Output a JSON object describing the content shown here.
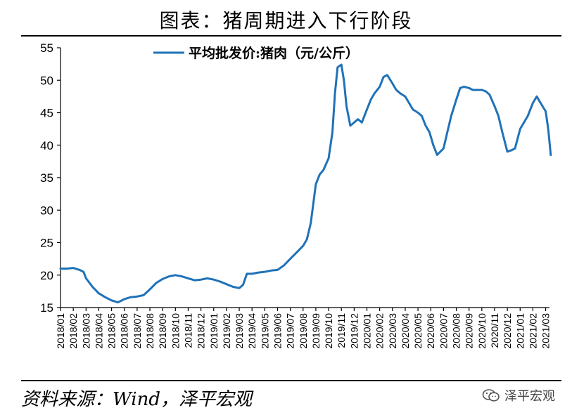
{
  "title": "图表：猪周期进入下行阶段",
  "source": "资料来源：Wind，泽平宏观",
  "logo_text": "泽平宏观",
  "logo_icon": "wechat-icon",
  "colors": {
    "line": "#1f72b8",
    "axis": "#000000"
  },
  "chart_data": {
    "type": "line",
    "title": "图表：猪周期进入下行阶段",
    "xlabel": "",
    "ylabel": "",
    "ylim": [
      15,
      55
    ],
    "yticks": [
      15,
      20,
      25,
      30,
      35,
      40,
      45,
      50,
      55
    ],
    "grid": false,
    "legend_position": "top-center",
    "categories": [
      "2018/01",
      "2018/02",
      "2018/03",
      "2018/04",
      "2018/05",
      "2018/06",
      "2018/07",
      "2018/08",
      "2018/09",
      "2018/10",
      "2018/11",
      "2018/12",
      "2019/01",
      "2019/02",
      "2019/03",
      "2019/04",
      "2019/05",
      "2019/06",
      "2019/07",
      "2019/08",
      "2019/09",
      "2019/10",
      "2019/11",
      "2019/12",
      "2020/01",
      "2020/02",
      "2020/03",
      "2020/04",
      "2020/05",
      "2020/06",
      "2020/07",
      "2020/08",
      "2020/09",
      "2020/10",
      "2020/11",
      "2020/12",
      "2021/01",
      "2021/02",
      "2021/03"
    ],
    "series": [
      {
        "name": "平均批发价:猪肉（元/公斤）",
        "x": [
          0,
          0.5,
          1,
          1.5,
          1.8,
          2,
          2.5,
          3,
          3.5,
          4,
          4.5,
          5,
          5.5,
          6,
          6.5,
          7,
          7.5,
          8,
          8.5,
          9,
          9.5,
          10,
          10.5,
          11,
          11.5,
          12,
          12.5,
          13,
          13.5,
          14,
          14.3,
          14.6,
          15,
          15.5,
          16,
          16.5,
          17,
          17.5,
          18,
          18.5,
          19,
          19.3,
          19.6,
          20,
          20.3,
          20.6,
          21,
          21.3,
          21.5,
          21.7,
          22,
          22.2,
          22.4,
          22.7,
          23,
          23.3,
          23.6,
          24,
          24.3,
          24.6,
          25,
          25.3,
          25.6,
          26,
          26.3,
          26.6,
          27,
          27.3,
          27.6,
          28,
          28.3,
          28.6,
          28.9,
          29.2,
          29.5,
          30,
          30.3,
          30.6,
          31,
          31.3,
          31.6,
          32,
          32.3,
          32.6,
          33,
          33.3,
          33.6,
          34,
          34.3,
          34.6,
          35,
          35.3,
          35.6,
          36,
          36.3,
          36.6,
          37,
          37.3,
          37.6,
          38,
          38.2,
          38.4
        ],
        "values": [
          21.0,
          21.0,
          21.1,
          20.8,
          20.5,
          19.5,
          18.2,
          17.2,
          16.6,
          16.1,
          15.8,
          16.3,
          16.6,
          16.7,
          16.9,
          17.8,
          18.8,
          19.4,
          19.8,
          20.0,
          19.8,
          19.5,
          19.2,
          19.3,
          19.5,
          19.3,
          19.0,
          18.6,
          18.2,
          18.0,
          18.5,
          20.2,
          20.2,
          20.4,
          20.5,
          20.7,
          20.8,
          21.5,
          22.5,
          23.5,
          24.5,
          25.5,
          28.0,
          34.0,
          35.5,
          36.2,
          38.0,
          42.0,
          48.0,
          52.0,
          52.4,
          50.0,
          46.0,
          43.0,
          43.5,
          44.0,
          43.5,
          45.5,
          47.0,
          48.0,
          49.0,
          50.5,
          50.8,
          49.5,
          48.5,
          48.0,
          47.5,
          46.5,
          45.5,
          45.0,
          44.5,
          43.0,
          42.0,
          40.0,
          38.5,
          39.5,
          42.0,
          44.5,
          47.0,
          48.8,
          49.0,
          48.8,
          48.5,
          48.5,
          48.5,
          48.3,
          47.8,
          46.0,
          44.5,
          42.0,
          39.0,
          39.2,
          39.5,
          42.5,
          43.5,
          44.5,
          46.5,
          47.5,
          46.5,
          45.2,
          42.5,
          38.5
        ]
      }
    ]
  }
}
